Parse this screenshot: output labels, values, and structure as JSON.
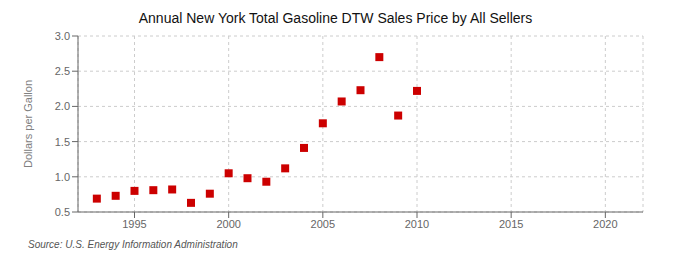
{
  "chart_data": {
    "type": "scatter",
    "title": "Annual New York Total Gasoline DTW Sales Price by All Sellers",
    "ylabel": "Dollars per Gallon",
    "annotations": [
      "Source: U.S. Energy Information Administration"
    ],
    "x": [
      1993,
      1994,
      1995,
      1996,
      1997,
      1998,
      1999,
      2000,
      2001,
      2002,
      2003,
      2004,
      2005,
      2006,
      2007,
      2008,
      2009,
      2010
    ],
    "values": [
      0.69,
      0.73,
      0.8,
      0.81,
      0.82,
      0.63,
      0.76,
      1.05,
      0.98,
      0.93,
      1.12,
      1.41,
      1.76,
      2.07,
      2.23,
      2.7,
      1.87,
      2.22
    ],
    "color": "#cc0000",
    "marker": "square",
    "xlim": [
      1992,
      2022
    ],
    "ylim": [
      0.5,
      3.0
    ],
    "xticks": [
      1995,
      2000,
      2005,
      2010,
      2015,
      2020
    ],
    "yticks": [
      0.5,
      {
        "value": 1.0,
        "label": "1.0"
      },
      1.5,
      {
        "value": 2.0,
        "label": "2.0"
      },
      2.5,
      {
        "value": 3.0,
        "label": "3.0"
      }
    ],
    "grid": true
  }
}
